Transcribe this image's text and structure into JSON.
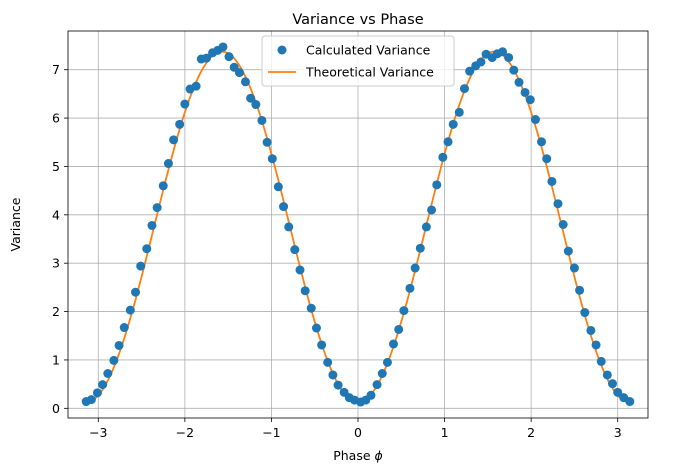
{
  "chart_data": {
    "type": "line",
    "title": "Variance vs Phase",
    "xlabel": "Phase",
    "xlabel_symbol": "ϕ",
    "ylabel": "Variance",
    "xlim": [
      -3.35,
      3.35
    ],
    "ylim": [
      -0.2,
      7.8
    ],
    "xticks": [
      -3,
      -2,
      -1,
      0,
      1,
      2,
      3
    ],
    "xtick_labels": [
      "−3",
      "−2",
      "−1",
      "0",
      "1",
      "2",
      "3"
    ],
    "yticks": [
      0,
      1,
      2,
      3,
      4,
      5,
      6,
      7
    ],
    "ytick_labels": [
      "0",
      "1",
      "2",
      "3",
      "4",
      "5",
      "6",
      "7"
    ],
    "grid": true,
    "legend": {
      "position": "top-center",
      "entries": [
        "Calculated Variance",
        "Theoretical Variance"
      ]
    },
    "colors": {
      "scatter": "#1f77b4",
      "line": "#ff7f0e",
      "grid": "#b0b0b0"
    },
    "series": [
      {
        "name": "Calculated Variance",
        "kind": "scatter",
        "x": [
          -3.14,
          -3.08,
          -3.01,
          -2.95,
          -2.89,
          -2.82,
          -2.76,
          -2.7,
          -2.63,
          -2.57,
          -2.51,
          -2.44,
          -2.38,
          -2.32,
          -2.25,
          -2.19,
          -2.13,
          -2.06,
          -2.0,
          -1.94,
          -1.87,
          -1.81,
          -1.75,
          -1.68,
          -1.62,
          -1.56,
          -1.49,
          -1.43,
          -1.37,
          -1.3,
          -1.24,
          -1.18,
          -1.11,
          -1.05,
          -0.99,
          -0.92,
          -0.86,
          -0.8,
          -0.73,
          -0.67,
          -0.61,
          -0.54,
          -0.48,
          -0.42,
          -0.35,
          -0.29,
          -0.23,
          -0.16,
          -0.1,
          -0.04,
          0.03,
          0.09,
          0.15,
          0.22,
          0.28,
          0.34,
          0.41,
          0.47,
          0.53,
          0.6,
          0.66,
          0.72,
          0.79,
          0.85,
          0.91,
          0.98,
          1.04,
          1.1,
          1.17,
          1.23,
          1.29,
          1.36,
          1.42,
          1.48,
          1.55,
          1.61,
          1.67,
          1.74,
          1.8,
          1.86,
          1.93,
          1.99,
          2.05,
          2.12,
          2.18,
          2.24,
          2.31,
          2.37,
          2.43,
          2.5,
          2.56,
          2.62,
          2.69,
          2.75,
          2.81,
          2.88,
          2.94,
          3.0,
          3.07,
          3.14
        ],
        "y": [
          0.14,
          0.18,
          0.32,
          0.49,
          0.72,
          0.99,
          1.3,
          1.67,
          2.03,
          2.4,
          2.94,
          3.3,
          3.78,
          4.15,
          4.6,
          5.06,
          5.55,
          5.87,
          6.29,
          6.6,
          6.66,
          7.22,
          7.24,
          7.35,
          7.4,
          7.47,
          7.27,
          7.05,
          6.94,
          6.75,
          6.41,
          6.28,
          5.95,
          5.5,
          5.16,
          4.58,
          4.17,
          3.75,
          3.28,
          2.86,
          2.43,
          2.07,
          1.66,
          1.31,
          0.95,
          0.69,
          0.48,
          0.33,
          0.22,
          0.17,
          0.13,
          0.17,
          0.27,
          0.49,
          0.72,
          0.95,
          1.33,
          1.63,
          2.02,
          2.48,
          2.9,
          3.31,
          3.75,
          4.1,
          4.62,
          5.19,
          5.51,
          5.87,
          6.12,
          6.61,
          6.97,
          7.08,
          7.16,
          7.32,
          7.25,
          7.33,
          7.37,
          7.25,
          6.99,
          6.74,
          6.53,
          6.38,
          5.97,
          5.51,
          5.16,
          4.69,
          4.23,
          3.8,
          3.25,
          2.9,
          2.44,
          1.98,
          1.61,
          1.31,
          0.97,
          0.69,
          0.51,
          0.33,
          0.22,
          0.14
        ]
      },
      {
        "name": "Theoretical Variance",
        "kind": "line",
        "model": "0.125 + 7.25 * sin^2(phi)",
        "amplitude": 7.25,
        "offset": 0.125,
        "x_range": [
          -3.14159,
          3.14159
        ]
      }
    ]
  }
}
